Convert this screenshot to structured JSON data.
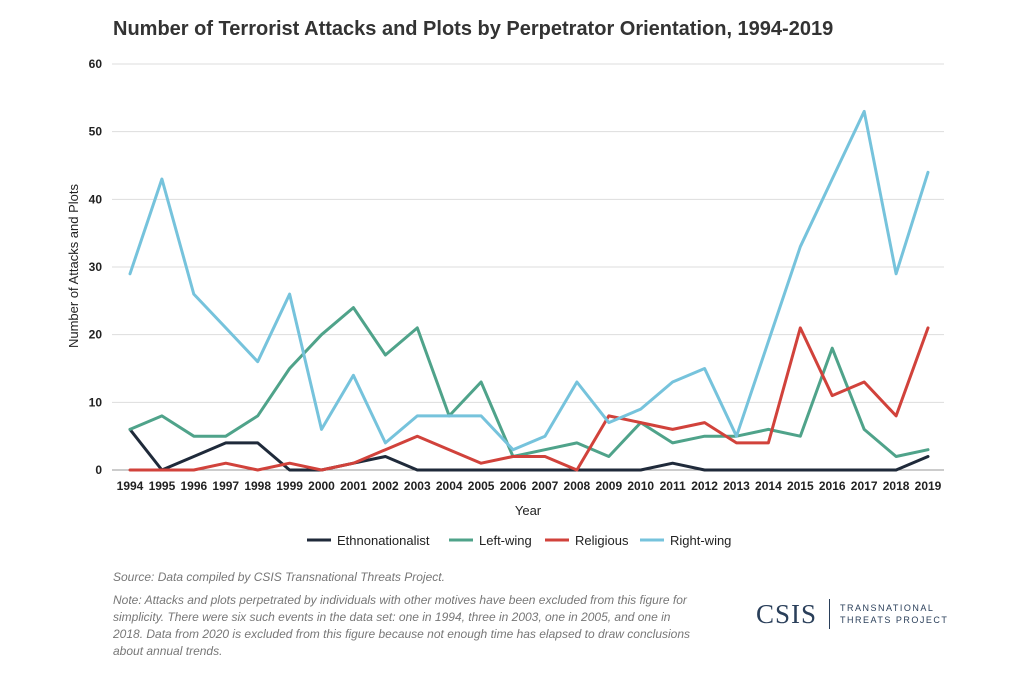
{
  "chart_data": {
    "type": "line",
    "title": "Number of Terrorist Attacks and Plots by Perpetrator Orientation, 1994-2019",
    "xlabel": "Year",
    "ylabel": "Number of Attacks and Plots",
    "ylim": [
      0,
      60
    ],
    "yticks": [
      0,
      10,
      20,
      30,
      40,
      50,
      60
    ],
    "grid": "horizontal",
    "legend_position": "bottom",
    "x": [
      "1994",
      "1995",
      "1996",
      "1997",
      "1998",
      "1999",
      "2000",
      "2001",
      "2002",
      "2003",
      "2004",
      "2005",
      "2006",
      "2007",
      "2008",
      "2009",
      "2010",
      "2011",
      "2012",
      "2013",
      "2014",
      "2015",
      "2016",
      "2017",
      "2018",
      "2019"
    ],
    "series": [
      {
        "name": "Ethnonationalist",
        "color": "#1f2a3a",
        "values": [
          6,
          0,
          2,
          4,
          4,
          0,
          0,
          1,
          2,
          0,
          0,
          0,
          0,
          0,
          0,
          0,
          0,
          1,
          0,
          0,
          0,
          0,
          0,
          0,
          0,
          2
        ]
      },
      {
        "name": "Left-wing",
        "color": "#4fa38a",
        "values": [
          6,
          8,
          5,
          5,
          8,
          15,
          20,
          24,
          17,
          21,
          8,
          13,
          2,
          3,
          4,
          2,
          7,
          4,
          5,
          5,
          6,
          5,
          18,
          6,
          2,
          3
        ]
      },
      {
        "name": "Religious",
        "color": "#d1423b",
        "values": [
          0,
          0,
          0,
          1,
          0,
          1,
          0,
          1,
          3,
          5,
          3,
          1,
          2,
          2,
          0,
          8,
          7,
          6,
          7,
          4,
          4,
          21,
          11,
          13,
          8,
          21
        ]
      },
      {
        "name": "Right-wing",
        "color": "#76c3dc",
        "values": [
          29,
          43,
          26,
          21,
          16,
          26,
          6,
          14,
          4,
          8,
          8,
          8,
          3,
          5,
          13,
          7,
          9,
          13,
          15,
          5,
          19,
          33,
          43,
          53,
          29,
          44
        ]
      }
    ]
  },
  "footer": {
    "source": "Source: Data compiled by CSIS Transnational Threats Project.",
    "note": "Note: Attacks and plots perpetrated by individuals with other motives have been excluded from this figure for simplicity. There were six such events in the data set: one in 1994, three in 2003, one in 2005, and one in 2018. Data from 2020 is excluded from this figure because not enough time has elapsed to draw conclusions about annual trends."
  },
  "logo": {
    "mark": "CSIS",
    "line1": "TRANSNATIONAL",
    "line2": "THREATS PROJECT"
  }
}
